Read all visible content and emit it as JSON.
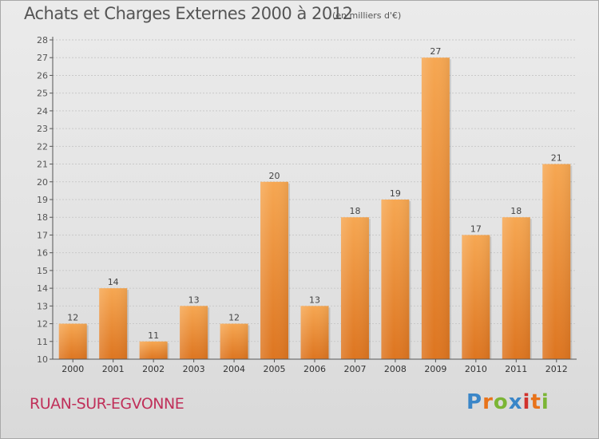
{
  "title": "Achats et Charges Externes 2000 à 2012",
  "subtitle": "(en milliers d'€)",
  "commune": "RUAN-SUR-EGVONNE",
  "brand": {
    "text": "Proxiti",
    "colors": [
      "#3a86c8",
      "#e8731a",
      "#7bb535",
      "#3a86c8",
      "#d1322c",
      "#e8731a",
      "#7bb535"
    ]
  },
  "colors": {
    "bar_light": "#f6a752",
    "bar_dark": "#dd7520",
    "bar_text": "#444444",
    "axis": "#555555",
    "grid": "#c9c9c9"
  },
  "chart_data": {
    "type": "bar",
    "categories": [
      "2000",
      "2001",
      "2002",
      "2003",
      "2004",
      "2005",
      "2006",
      "2007",
      "2008",
      "2009",
      "2010",
      "2011",
      "2012"
    ],
    "values": [
      12,
      14,
      11,
      13,
      12,
      20,
      13,
      18,
      19,
      27,
      17,
      18,
      21
    ],
    "title": "Achats et Charges Externes 2000 à 2012",
    "subtitle": "(en milliers d'€)",
    "xlabel": "",
    "ylabel": "",
    "ylim": [
      10,
      28
    ],
    "yticks": [
      10,
      11,
      12,
      13,
      14,
      15,
      16,
      17,
      18,
      19,
      20,
      21,
      22,
      23,
      24,
      25,
      26,
      27,
      28
    ],
    "grid": true,
    "data_labels": true
  }
}
